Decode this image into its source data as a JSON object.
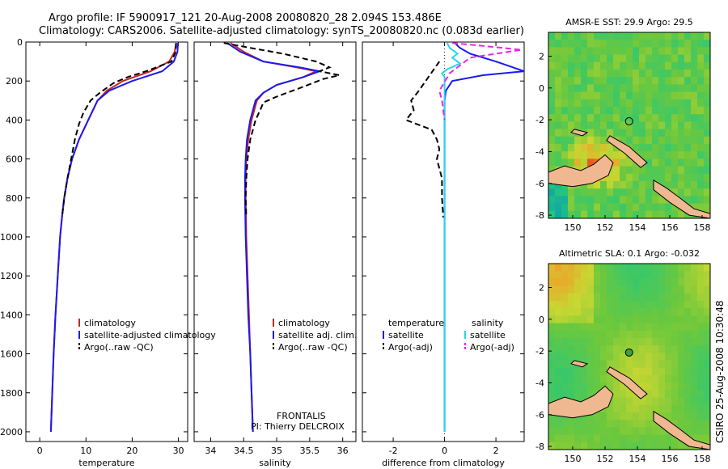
{
  "header": {
    "line1": "Argo profile: IF 5900917_121 20-Aug-2008 20080820_28 2.094S 153.486E",
    "line2": "Climatology: CARS2006. Satellite-adjusted climatology: synTS_20080820.nc (0.083d earlier)"
  },
  "side_label": "CSIRO 25-Aug-2008 10:30:48",
  "colors": {
    "climatology": "#cc2222",
    "satellite": "#1a1aee",
    "argo": "#000000",
    "satellite_salinity": "#22d8e8",
    "argo_salinity": "#ee22ee",
    "land": "#f0b890"
  },
  "chart_data": [
    {
      "type": "line",
      "name": "temperature-profile",
      "xlabel": "temperature",
      "xlim": [
        -3,
        32
      ],
      "xticks": [
        0,
        10,
        20,
        30
      ],
      "ylim": [
        2050,
        0
      ],
      "yticks": [
        0,
        200,
        400,
        600,
        800,
        1000,
        1200,
        1400,
        1600,
        1800,
        2000
      ],
      "legend": [
        "climatology",
        "satellite-adjusted climatology",
        "Argo(..raw -QC)"
      ],
      "series": [
        {
          "name": "climatology",
          "style": "solid",
          "color": "#cc2222",
          "points": [
            [
              29.5,
              5
            ],
            [
              29.2,
              50
            ],
            [
              28.0,
              100
            ],
            [
              24.0,
              150
            ],
            [
              18.0,
              200
            ],
            [
              14.5,
              250
            ],
            [
              12.5,
              300
            ],
            [
              10.5,
              400
            ],
            [
              8.5,
              500
            ],
            [
              7.0,
              600
            ],
            [
              6.0,
              700
            ],
            [
              5.3,
              800
            ],
            [
              4.8,
              900
            ],
            [
              4.4,
              1000
            ],
            [
              3.9,
              1200
            ],
            [
              3.4,
              1400
            ],
            [
              3.0,
              1600
            ],
            [
              2.7,
              1800
            ],
            [
              2.4,
              2000
            ]
          ]
        },
        {
          "name": "satellite-adjusted climatology",
          "style": "solid",
          "color": "#1a1aee",
          "points": [
            [
              29.9,
              5
            ],
            [
              29.8,
              50
            ],
            [
              29.0,
              100
            ],
            [
              26.5,
              150
            ],
            [
              20.0,
              200
            ],
            [
              15.0,
              250
            ],
            [
              12.5,
              300
            ],
            [
              10.5,
              400
            ],
            [
              8.5,
              500
            ],
            [
              7.0,
              600
            ],
            [
              6.0,
              700
            ],
            [
              5.3,
              800
            ],
            [
              4.8,
              900
            ],
            [
              4.4,
              1000
            ],
            [
              3.9,
              1200
            ],
            [
              3.4,
              1400
            ],
            [
              3.0,
              1600
            ],
            [
              2.7,
              1800
            ],
            [
              2.4,
              2000
            ]
          ]
        },
        {
          "name": "Argo(..raw -QC)",
          "style": "dashed",
          "color": "#000000",
          "points": [
            [
              29.5,
              5
            ],
            [
              29.4,
              50
            ],
            [
              28.5,
              100
            ],
            [
              23.0,
              150
            ],
            [
              19.0,
              180
            ],
            [
              16.0,
              210
            ],
            [
              13.0,
              260
            ],
            [
              11.0,
              300
            ],
            [
              9.5,
              360
            ],
            [
              8.5,
              420
            ],
            [
              7.6,
              500
            ],
            [
              6.8,
              600
            ],
            [
              6.0,
              700
            ],
            [
              5.3,
              800
            ],
            [
              4.8,
              900
            ]
          ]
        }
      ]
    },
    {
      "type": "line",
      "name": "salinity-profile",
      "xlabel": "salinity",
      "xlim": [
        33.75,
        36.2
      ],
      "xticks": [
        34,
        34.5,
        35,
        35.5,
        36
      ],
      "ylim": [
        2050,
        0
      ],
      "legend": [
        "climatology",
        "satellite adj. clim.",
        "Argo(..raw -QC)"
      ],
      "annotation": [
        "FRONTALIS",
        "PI: Thierry DELCROIX"
      ],
      "series": [
        {
          "name": "climatology",
          "style": "solid",
          "color": "#cc2222",
          "points": [
            [
              34.3,
              5
            ],
            [
              34.5,
              50
            ],
            [
              34.8,
              100
            ],
            [
              35.3,
              130
            ],
            [
              35.6,
              150
            ],
            [
              35.4,
              180
            ],
            [
              35.0,
              220
            ],
            [
              34.8,
              260
            ],
            [
              34.7,
              300
            ],
            [
              34.62,
              400
            ],
            [
              34.57,
              500
            ],
            [
              34.54,
              600
            ],
            [
              34.53,
              700
            ],
            [
              34.53,
              800
            ],
            [
              34.54,
              1000
            ],
            [
              34.56,
              1200
            ],
            [
              34.58,
              1400
            ],
            [
              34.6,
              1600
            ],
            [
              34.62,
              1800
            ],
            [
              34.64,
              2000
            ]
          ]
        },
        {
          "name": "satellite adj. clim.",
          "style": "solid",
          "color": "#1a1aee",
          "points": [
            [
              34.25,
              5
            ],
            [
              34.45,
              50
            ],
            [
              34.8,
              100
            ],
            [
              35.35,
              130
            ],
            [
              35.65,
              150
            ],
            [
              35.4,
              180
            ],
            [
              35.0,
              220
            ],
            [
              34.8,
              260
            ],
            [
              34.68,
              300
            ],
            [
              34.6,
              400
            ],
            [
              34.55,
              500
            ],
            [
              34.53,
              600
            ],
            [
              34.52,
              700
            ],
            [
              34.52,
              800
            ],
            [
              34.53,
              1000
            ],
            [
              34.55,
              1200
            ],
            [
              34.57,
              1400
            ],
            [
              34.6,
              1600
            ],
            [
              34.62,
              1800
            ],
            [
              34.64,
              2000
            ]
          ]
        },
        {
          "name": "Argo(..raw -QC)",
          "style": "dashed",
          "color": "#000000",
          "points": [
            [
              34.2,
              5
            ],
            [
              34.6,
              30
            ],
            [
              35.1,
              60
            ],
            [
              35.6,
              100
            ],
            [
              35.8,
              130
            ],
            [
              35.65,
              150
            ],
            [
              35.95,
              170
            ],
            [
              35.7,
              190
            ],
            [
              35.4,
              230
            ],
            [
              35.0,
              280
            ],
            [
              34.8,
              310
            ],
            [
              34.75,
              350
            ],
            [
              34.68,
              400
            ],
            [
              34.6,
              500
            ],
            [
              34.56,
              600
            ],
            [
              34.54,
              700
            ],
            [
              34.53,
              800
            ],
            [
              34.54,
              900
            ]
          ]
        }
      ]
    },
    {
      "type": "line",
      "name": "difference-profile",
      "xlabel": "difference from climatology",
      "xlim": [
        -3.2,
        3.1
      ],
      "xticks": [
        -2,
        0,
        2
      ],
      "ylim": [
        2050,
        0
      ],
      "legend_titles": [
        "temperature",
        "salinity"
      ],
      "legend": [
        "satellite",
        "Argo(-adj)",
        "satellite",
        "Argo(-adj)"
      ],
      "series": [
        {
          "name": "temperature satellite",
          "style": "solid",
          "color": "#1a1aee",
          "points": [
            [
              0.4,
              5
            ],
            [
              0.6,
              30
            ],
            [
              1.0,
              60
            ],
            [
              2.0,
              100
            ],
            [
              3.1,
              150
            ],
            [
              1.5,
              170
            ],
            [
              0.3,
              200
            ],
            [
              0.05,
              250
            ],
            [
              0.0,
              300
            ],
            [
              0.0,
              400
            ],
            [
              0.0,
              2000
            ]
          ]
        },
        {
          "name": "temperature Argo(-adj)",
          "style": "dashed",
          "color": "#000000",
          "points": [
            [
              -0.2,
              100
            ],
            [
              -1.0,
              250
            ],
            [
              -1.3,
              300
            ],
            [
              -1.2,
              350
            ],
            [
              -1.5,
              400
            ],
            [
              -0.5,
              450
            ],
            [
              -0.3,
              500
            ],
            [
              -0.2,
              550
            ],
            [
              -0.3,
              600
            ],
            [
              -0.1,
              700
            ],
            [
              -0.1,
              800
            ],
            [
              -0.05,
              900
            ]
          ]
        },
        {
          "name": "salinity satellite",
          "style": "solid",
          "color": "#22d8e8",
          "points": [
            [
              0.1,
              5
            ],
            [
              0.2,
              30
            ],
            [
              0.5,
              60
            ],
            [
              0.3,
              80
            ],
            [
              0.6,
              110
            ],
            [
              0.1,
              140
            ],
            [
              -0.1,
              160
            ],
            [
              0.0,
              180
            ],
            [
              0.0,
              200
            ],
            [
              0.0,
              2000
            ]
          ]
        },
        {
          "name": "salinity Argo(-adj)",
          "style": "dashed",
          "color": "#ee22ee",
          "points": [
            [
              0.3,
              5
            ],
            [
              1.5,
              20
            ],
            [
              3.0,
              40
            ],
            [
              1.0,
              80
            ],
            [
              0.6,
              120
            ],
            [
              0.2,
              160
            ],
            [
              -0.2,
              250
            ],
            [
              -0.1,
              300
            ],
            [
              0.0,
              400
            ]
          ]
        }
      ]
    },
    {
      "type": "heatmap",
      "name": "sst-map",
      "title": "AMSR-E SST: 29.9 Argo: 29.5",
      "xlim": [
        148.5,
        158.5
      ],
      "ylim": [
        -8.2,
        3.5
      ],
      "xticks": [
        150,
        152,
        154,
        156,
        158
      ],
      "yticks": [
        2,
        0,
        -2,
        -4,
        -6,
        -8
      ],
      "argo_position": [
        153.486,
        -2.094
      ]
    },
    {
      "type": "heatmap",
      "name": "sla-map",
      "title": "Altimetric SLA: 0.1 Argo: -0.032",
      "xlim": [
        148.5,
        158.5
      ],
      "ylim": [
        -8.2,
        3.5
      ],
      "xticks": [
        150,
        152,
        154,
        156,
        158
      ],
      "yticks": [
        2,
        0,
        -2,
        -4,
        -6,
        -8
      ],
      "argo_position": [
        153.486,
        -2.094
      ]
    }
  ]
}
